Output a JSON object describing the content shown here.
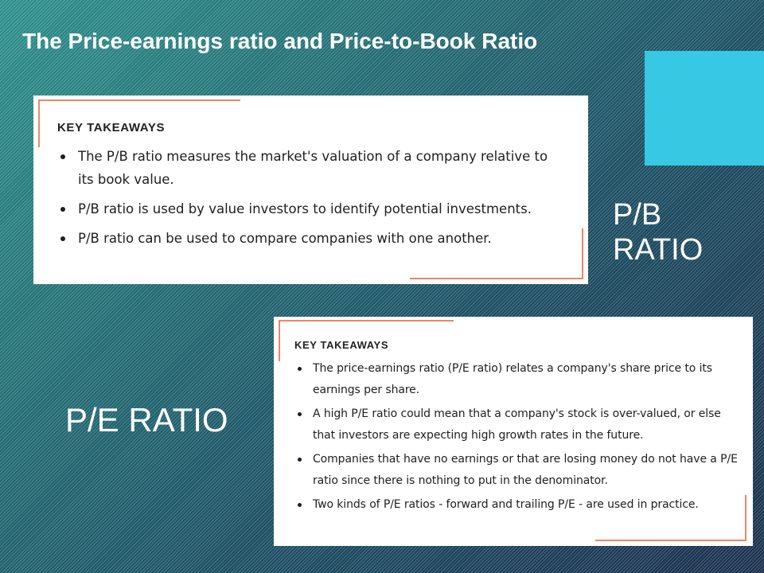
{
  "slide": {
    "title": "The Price-earnings ratio and Price-to-Book Ratio",
    "accent_color": "#37c8e3"
  },
  "pb_section": {
    "label": "P/B\nRATIO",
    "card": {
      "heading": "KEY TAKEAWAYS",
      "bullets": [
        "The P/B ratio measures the market's valuation of a company relative to its book value.",
        "P/B ratio is used by value investors to identify potential investments.",
        "P/B ratio can be used to compare companies with one another."
      ]
    }
  },
  "pe_section": {
    "label": "P/E RATIO",
    "card": {
      "heading": "KEY TAKEAWAYS",
      "bullets": [
        "The price-earnings ratio (P/E ratio) relates a company's share price to its earnings per share.",
        "A high P/E ratio could mean that a company's stock is over-valued, or else that investors are expecting high growth rates in the future.",
        "Companies that have no earnings or that are losing money do not have a P/E ratio since there is nothing to put in the denominator.",
        "Two kinds of P/E ratios - forward and trailing P/E - are used in practice."
      ]
    }
  },
  "colors": {
    "frame_accent": "#e8876b",
    "text": "#1e1e1e"
  }
}
